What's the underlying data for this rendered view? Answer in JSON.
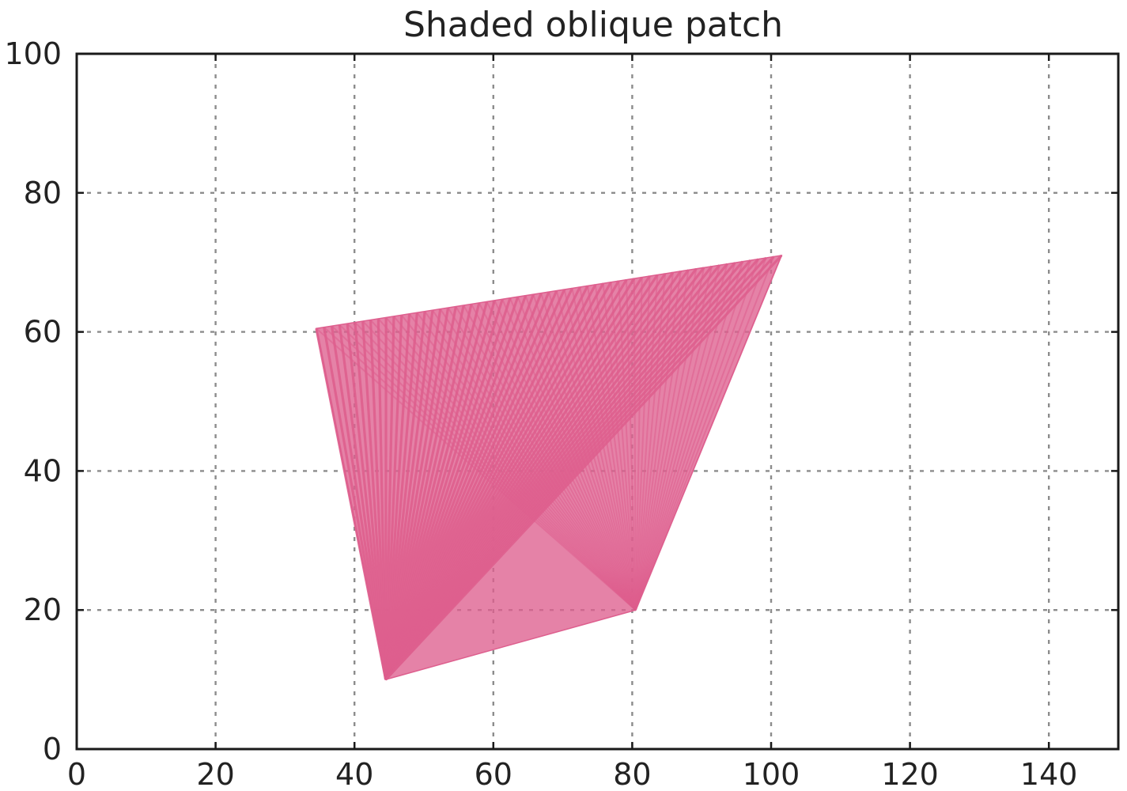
{
  "chart_data": {
    "type": "area",
    "title": "Shaded oblique patch",
    "xlabel": "",
    "ylabel": "",
    "xlim": [
      0,
      150
    ],
    "ylim": [
      0,
      100
    ],
    "xticks": [
      0,
      20,
      40,
      60,
      80,
      100,
      120,
      140
    ],
    "yticks": [
      0,
      20,
      40,
      60,
      80,
      100
    ],
    "grid": true,
    "series": [
      {
        "style": "polygon",
        "color": "#de5f8e",
        "vertices": [
          [
            34.5,
            60.5
          ],
          [
            101.5,
            71
          ],
          [
            80.5,
            20
          ],
          [
            44.5,
            10
          ]
        ],
        "fan_stroke_count": 60,
        "fan_anchor": [
          44.5,
          10
        ]
      }
    ]
  }
}
